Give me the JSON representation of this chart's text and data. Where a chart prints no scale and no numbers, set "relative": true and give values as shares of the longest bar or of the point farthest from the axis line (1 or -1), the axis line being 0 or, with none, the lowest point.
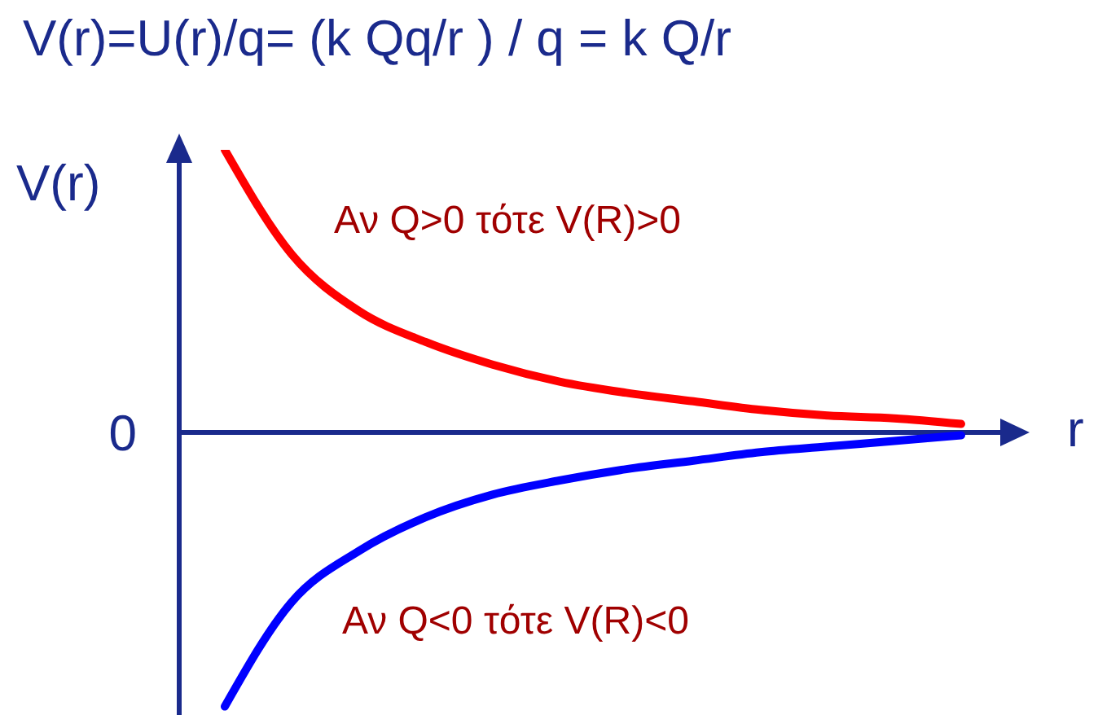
{
  "chart_data": {
    "type": "line",
    "relative": true,
    "title": "V(r)=U(r)/q= (k Qq/r ) / q = k Q/r",
    "xlabel": "r",
    "ylabel": "V(r)",
    "marker": "none",
    "categories": [
      null,
      null,
      null,
      null,
      null,
      null,
      null,
      null,
      null,
      null,
      null,
      null
    ],
    "series": [
      {
        "color": "#ff0000",
        "values": [
          1,
          0.63,
          0.43,
          0.32,
          0.24,
          0.18,
          0.14,
          0.11,
          0.08,
          0.06,
          0.05,
          0.03
        ]
      },
      {
        "color": "#0000ff",
        "values": [
          -0.97,
          -0.6,
          -0.42,
          -0.3,
          -0.22,
          -0.17,
          -0.13,
          -0.1,
          -0.07,
          -0.05,
          -0.03,
          -0.01
        ]
      }
    ],
    "ref_lines": [
      {
        "axis": "y",
        "value": 0,
        "label": "0",
        "color": "#1a2a8c"
      }
    ],
    "annotations": [
      "Αν Q>0 τότε V(R)>0",
      "Αν Q<0 τότε V(R)<0"
    ]
  }
}
